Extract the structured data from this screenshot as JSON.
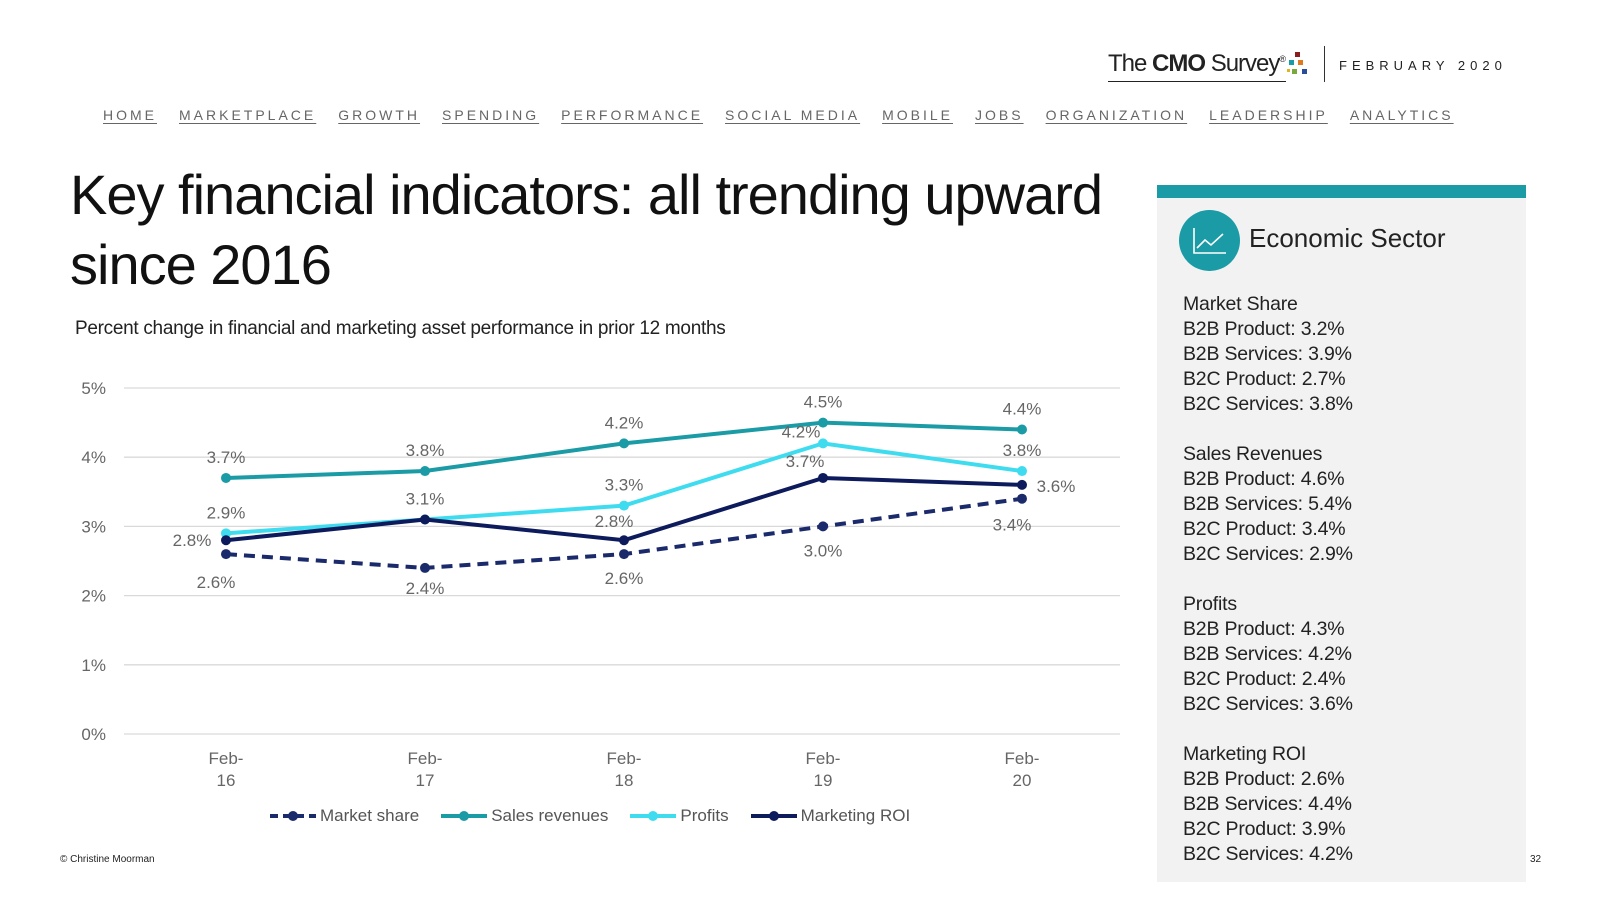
{
  "header": {
    "logo_the": "The ",
    "logo_cmo": "CMO",
    "logo_survey": " Survey",
    "logo_reg": "®",
    "date": "FEBRUARY 2020"
  },
  "nav": [
    "HOME",
    "MARKETPLACE",
    "GROWTH",
    "SPENDING",
    "PERFORMANCE",
    "SOCIAL MEDIA",
    "MOBILE",
    "JOBS",
    "ORGANIZATION",
    "LEADERSHIP",
    "ANALYTICS"
  ],
  "title": "Key financial indicators: all trending upward since 2016",
  "subtitle": "Percent change in financial and marketing asset performance in prior 12 months",
  "chart_data": {
    "type": "line",
    "categories": [
      [
        "Feb-",
        "16"
      ],
      [
        "Feb-",
        "17"
      ],
      [
        "Feb-",
        "18"
      ],
      [
        "Feb-",
        "19"
      ],
      [
        "Feb-",
        "20"
      ]
    ],
    "ylim": [
      0,
      5
    ],
    "yticks": [
      "0%",
      "1%",
      "2%",
      "3%",
      "4%",
      "5%"
    ],
    "grid": true,
    "legend": "bottom",
    "series": [
      {
        "name": "Market share",
        "color": "#1b2a6b",
        "dashed": true,
        "values": [
          2.6,
          2.4,
          2.6,
          3.0,
          3.4
        ],
        "labels": [
          "2.6%",
          "2.4%",
          "2.6%",
          "3.0%",
          "3.4%"
        ]
      },
      {
        "name": "Sales revenues",
        "color": "#1a9ba5",
        "dashed": false,
        "values": [
          3.7,
          3.8,
          4.2,
          4.5,
          4.4
        ],
        "labels": [
          "3.7%",
          "3.8%",
          "4.2%",
          "4.5%",
          "4.4%"
        ]
      },
      {
        "name": "Profits",
        "color": "#3fdcf0",
        "dashed": false,
        "values": [
          2.9,
          3.1,
          3.3,
          4.2,
          3.8
        ],
        "labels": [
          "2.9%",
          "3.1%",
          "3.3%",
          "4.2%",
          "3.8%"
        ]
      },
      {
        "name": "Marketing ROI",
        "color": "#0d1b5c",
        "dashed": false,
        "values": [
          2.8,
          3.1,
          2.8,
          3.7,
          3.6
        ],
        "labels": [
          "2.8%",
          "",
          "2.8%",
          "3.7%",
          "3.6%"
        ]
      }
    ]
  },
  "sidebar": {
    "title": "Economic Sector",
    "icon": "line-chart-icon",
    "accent": "#1a9ba5",
    "groups": [
      {
        "heading": "Market Share",
        "lines": [
          "B2B Product: 3.2%",
          "B2B Services: 3.9%",
          "B2C Product: 2.7%",
          "B2C Services: 3.8%"
        ]
      },
      {
        "heading": "Sales Revenues",
        "lines": [
          "B2B Product: 4.6%",
          "B2B Services: 5.4%",
          "B2C Product: 3.4%",
          "B2C Services: 2.9%"
        ]
      },
      {
        "heading": "Profits",
        "lines": [
          "B2B Product: 4.3%",
          "B2B Services: 4.2%",
          "B2C Product: 2.4%",
          "B2C Services: 3.6%"
        ]
      },
      {
        "heading": "Marketing ROI",
        "lines": [
          "B2B Product: 2.6%",
          "B2B Services: 4.4%",
          "B2C Product: 3.9%",
          "B2C Services: 4.2%"
        ]
      }
    ]
  },
  "footer": {
    "copyright": "© Christine Moorman",
    "page": "32"
  }
}
